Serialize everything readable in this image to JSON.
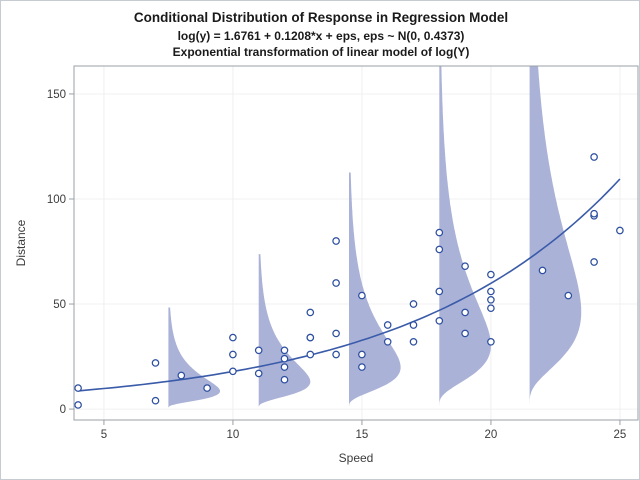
{
  "chart_data": {
    "type": "scatter",
    "title": "Conditional Distribution of Response in Regression Model",
    "subtitle": "log(y) = 1.6761 + 0.1208*x + eps, eps ~ N(0, 0.4373)",
    "subtitle2": "Exponential transformation of linear model of log(Y)",
    "xlabel": "Speed",
    "ylabel": "Distance",
    "xlim": [
      3.84,
      25.7
    ],
    "ylim": [
      -5.2,
      163.3
    ],
    "xticks": [
      5,
      10,
      15,
      20,
      25
    ],
    "yticks": [
      0,
      50,
      100,
      150
    ],
    "grid": true,
    "legend": "none",
    "scatter": [
      [
        4,
        2
      ],
      [
        4,
        10
      ],
      [
        7,
        4
      ],
      [
        7,
        22
      ],
      [
        8,
        16
      ],
      [
        9,
        10
      ],
      [
        10,
        18
      ],
      [
        10,
        26
      ],
      [
        10,
        34
      ],
      [
        11,
        17
      ],
      [
        11,
        28
      ],
      [
        12,
        14
      ],
      [
        12,
        20
      ],
      [
        12,
        24
      ],
      [
        12,
        28
      ],
      [
        13,
        26
      ],
      [
        13,
        34
      ],
      [
        13,
        34
      ],
      [
        13,
        46
      ],
      [
        14,
        26
      ],
      [
        14,
        36
      ],
      [
        14,
        60
      ],
      [
        14,
        80
      ],
      [
        15,
        20
      ],
      [
        15,
        26
      ],
      [
        15,
        54
      ],
      [
        16,
        32
      ],
      [
        16,
        40
      ],
      [
        17,
        32
      ],
      [
        17,
        40
      ],
      [
        17,
        50
      ],
      [
        18,
        42
      ],
      [
        18,
        56
      ],
      [
        18,
        76
      ],
      [
        18,
        84
      ],
      [
        19,
        36
      ],
      [
        19,
        46
      ],
      [
        19,
        68
      ],
      [
        20,
        32
      ],
      [
        20,
        48
      ],
      [
        20,
        52
      ],
      [
        20,
        56
      ],
      [
        20,
        64
      ],
      [
        22,
        66
      ],
      [
        23,
        54
      ],
      [
        24,
        70
      ],
      [
        24,
        92
      ],
      [
        24,
        93
      ],
      [
        24,
        120
      ],
      [
        25,
        85
      ]
    ],
    "fit_curve": {
      "formula": "y = exp(1.6761 + 0.1208*x)",
      "intercept": 1.6761,
      "slope": 0.1208,
      "x_min": 4,
      "x_max": 25
    },
    "densities": {
      "distribution": "lognormal",
      "at_speeds": [
        7.5,
        11,
        14.5,
        18,
        21.5
      ],
      "log_mean_intercept": 1.6761,
      "log_mean_slope": 0.1208,
      "log_variance": 0.4373,
      "upper_quantile": 0.975,
      "max_half_width_x_units": 2.0
    },
    "colors": {
      "marker": "#2d4f9f",
      "marker_fill": "#ffffff",
      "curve": "#3a5ba9",
      "density_fill": "#abb2d8",
      "grid": "#f0f0f0",
      "frame": "#9aa0a6",
      "text": "#3c3c3c"
    }
  }
}
